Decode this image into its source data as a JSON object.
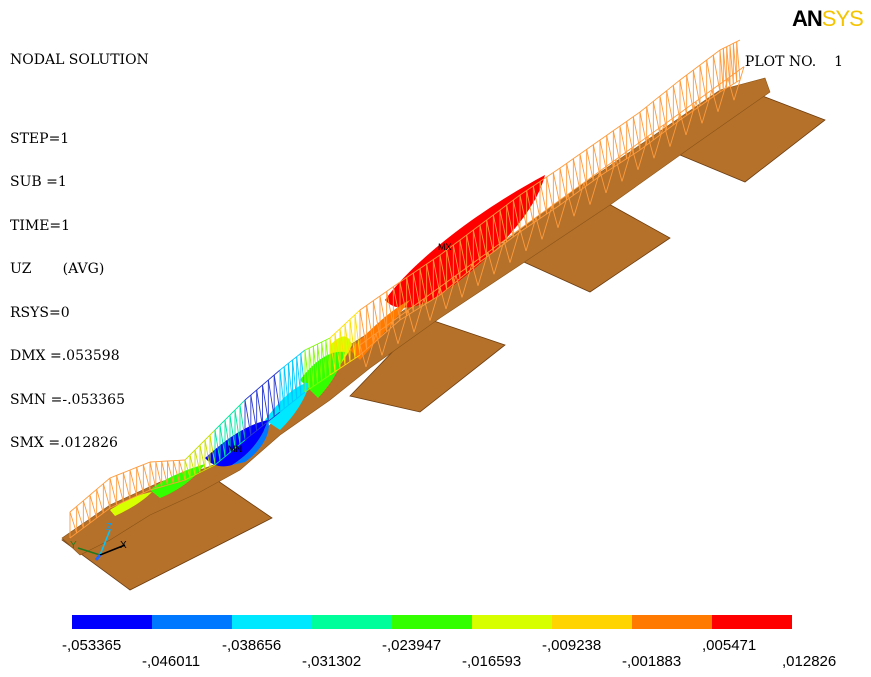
{
  "header": {
    "title": "NODAL SOLUTION",
    "lines": [
      "STEP=1",
      "SUB =1",
      "TIME=1",
      "UZ       (AVG)",
      "RSYS=0",
      "DMX =.053598",
      "SMN =-.053365",
      "SMX =.012826"
    ]
  },
  "logo": {
    "part1": "AN",
    "part2": "SYS"
  },
  "plot_no": {
    "label": "PLOT NO.",
    "value": "1"
  },
  "markers": {
    "mx": "MX",
    "mn": "MN"
  },
  "axis_triad": {
    "x": "X",
    "y": "Y",
    "z": "Z"
  },
  "legend": {
    "colors": [
      "#0000ff",
      "#0078ff",
      "#00e8ff",
      "#00ff9a",
      "#34ff00",
      "#d8ff00",
      "#ffd400",
      "#ff7a00",
      "#ff0000"
    ],
    "labels": [
      "-,053365",
      "-,046011",
      "-,038656",
      "-,031302",
      "-,023947",
      "-,016593",
      "-,009238",
      "-,001883",
      ",005471",
      ",012826"
    ]
  }
}
